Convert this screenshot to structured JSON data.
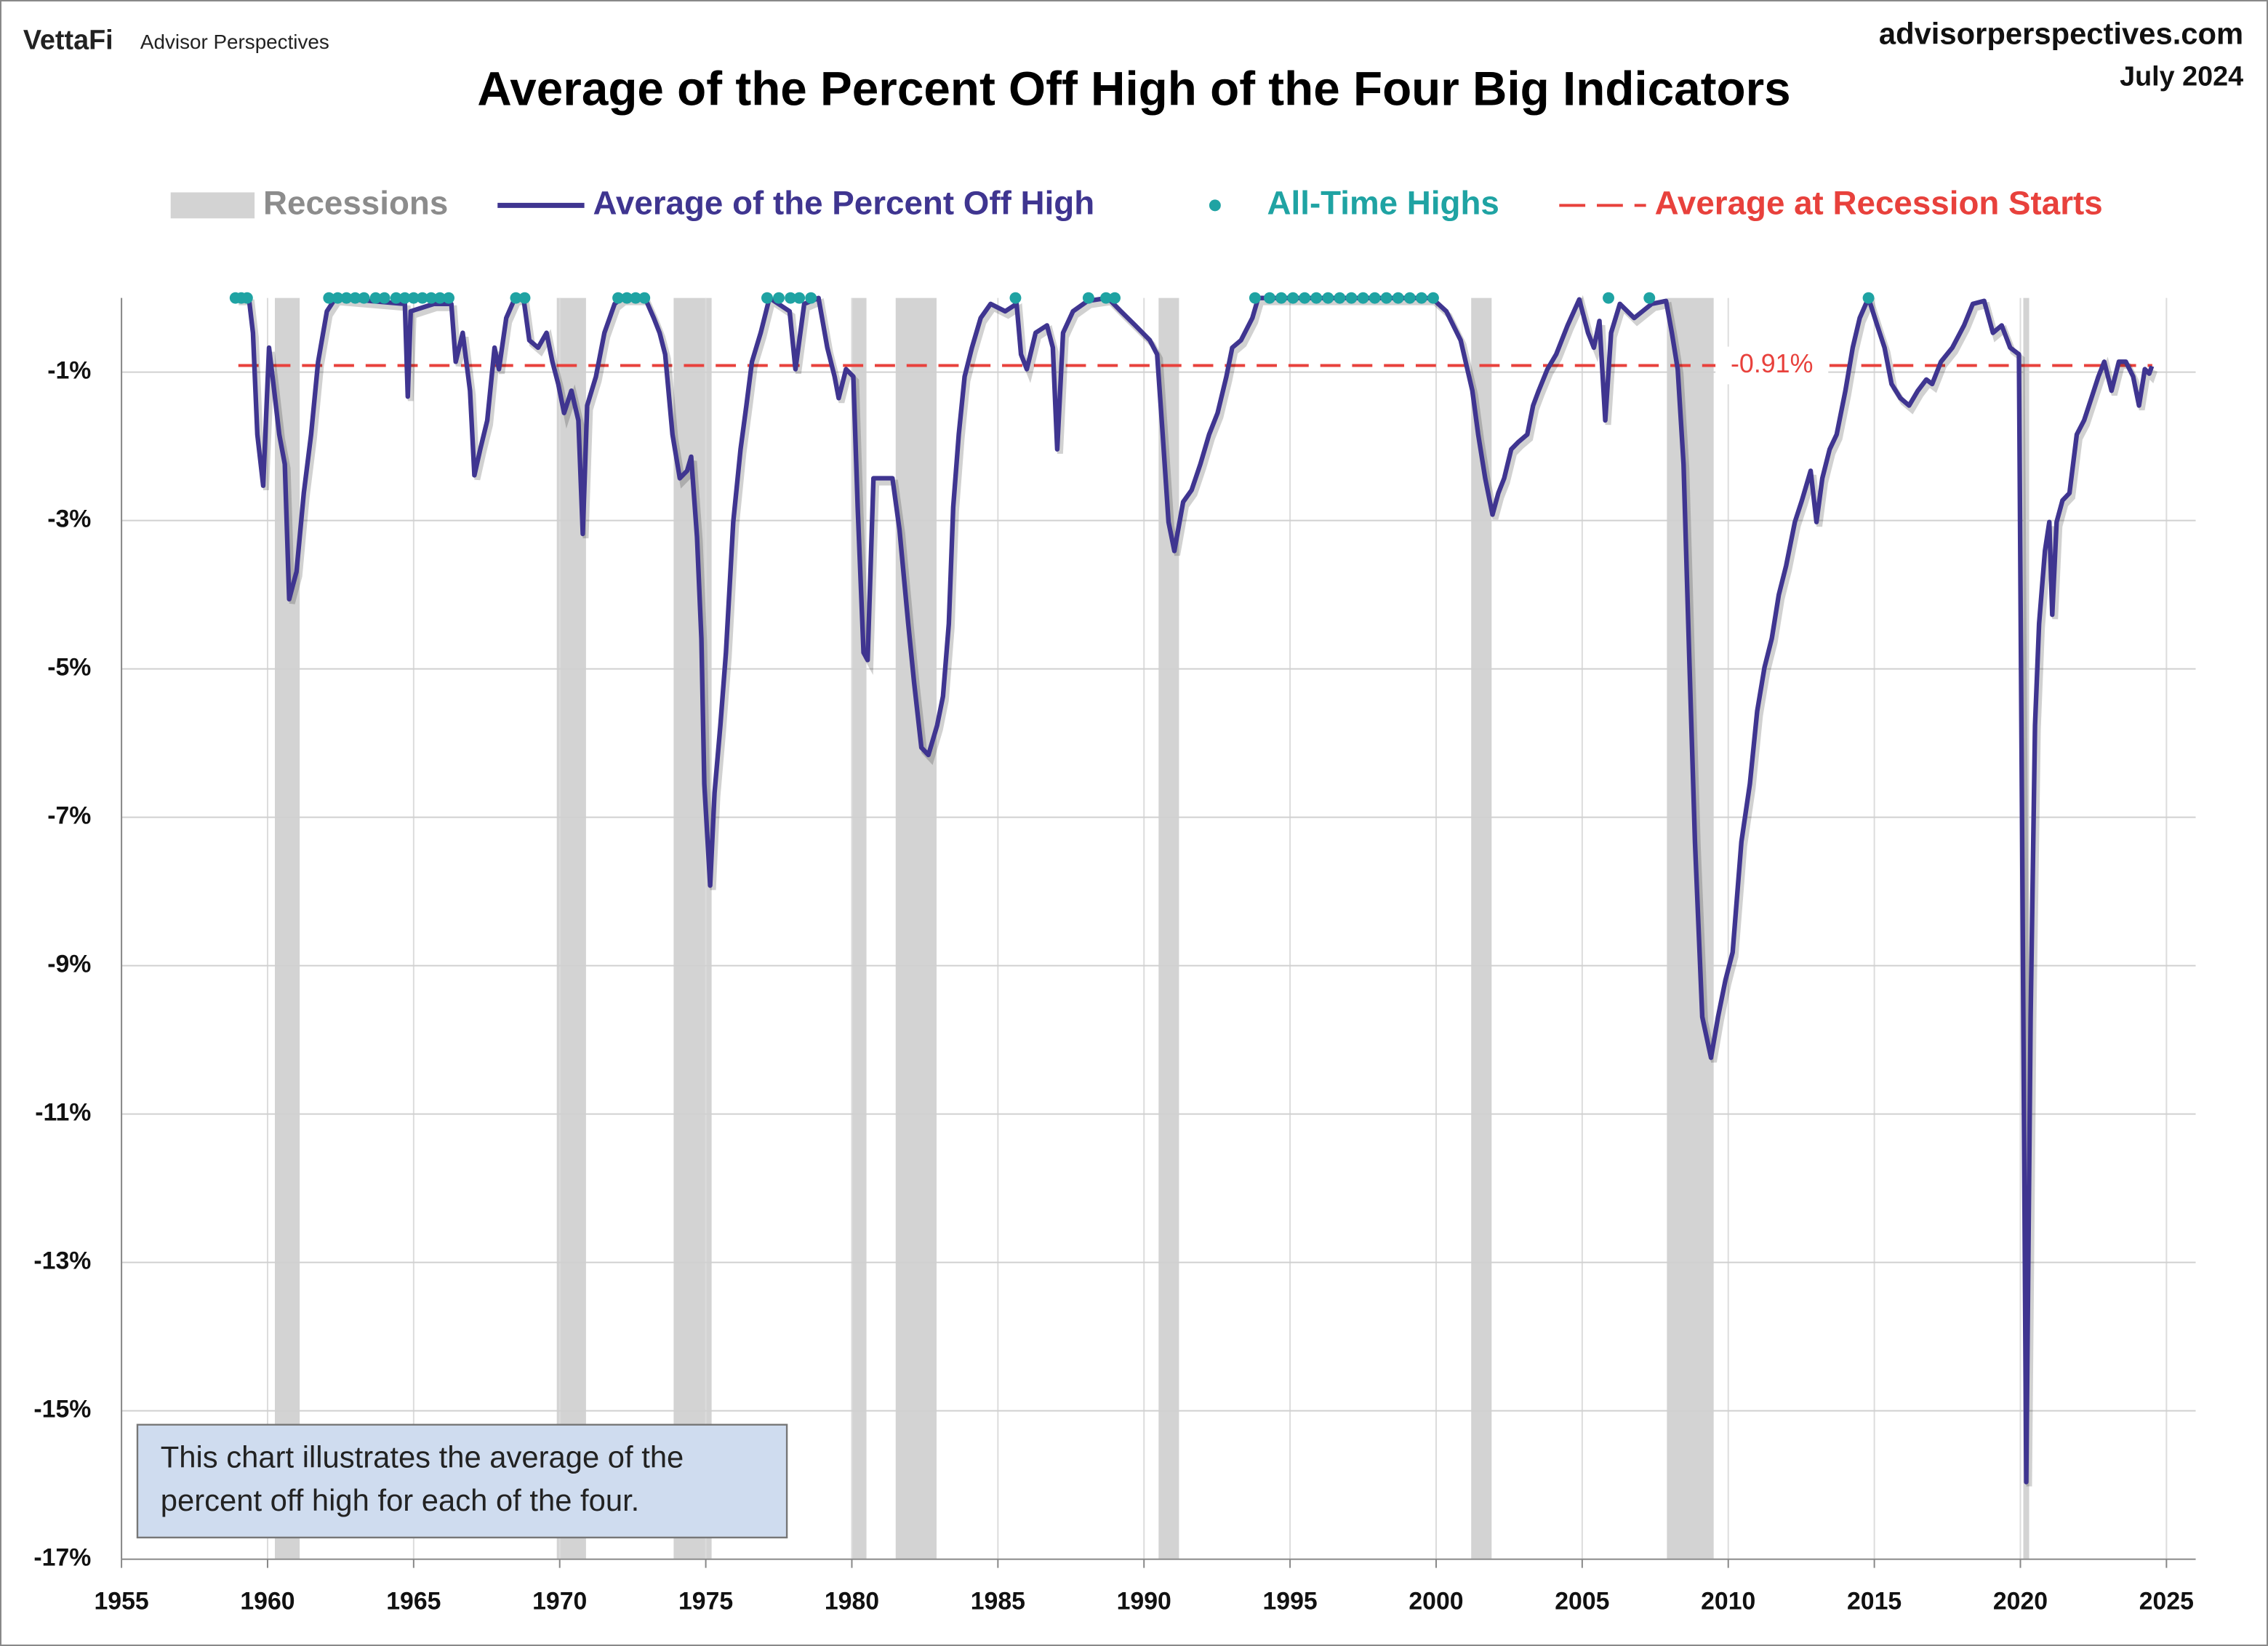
{
  "header": {
    "brand": "VettaFi",
    "publisher": "Advisor Perspectives",
    "site": "advisorperspectives.com",
    "date": "July 2024"
  },
  "chart_data": {
    "type": "line",
    "title": "Average of the Percent Off High of the Four Big Indicators",
    "xlim": [
      1955,
      2026
    ],
    "xticks": [
      1955,
      1960,
      1965,
      1970,
      1975,
      1980,
      1985,
      1990,
      1995,
      2000,
      2005,
      2010,
      2015,
      2020,
      2025
    ],
    "ylim": [
      -17,
      0
    ],
    "yticks": [
      {
        "value": -1,
        "label": "-1%"
      },
      {
        "value": -3,
        "label": "-3%"
      },
      {
        "value": -5,
        "label": "-5%"
      },
      {
        "value": -7,
        "label": "-7%"
      },
      {
        "value": -9,
        "label": "-9%"
      },
      {
        "value": -11,
        "label": "-11%"
      },
      {
        "value": -13,
        "label": "-13%"
      },
      {
        "value": -15,
        "label": "-15%"
      },
      {
        "value": -17,
        "label": "-17%"
      }
    ],
    "grid": true,
    "recessions": {
      "name": "Recessions",
      "color": "#d3d3d3",
      "periods": [
        [
          1960.25,
          1961.1
        ],
        [
          1969.9,
          1970.9
        ],
        [
          1973.9,
          1975.2
        ],
        [
          1980.0,
          1980.5
        ],
        [
          1981.5,
          1982.9
        ],
        [
          1990.5,
          1991.2
        ],
        [
          2001.2,
          2001.9
        ],
        [
          2007.9,
          2009.5
        ],
        [
          2020.1,
          2020.3
        ]
      ]
    },
    "series": [
      {
        "name": "Average of the Percent Off High",
        "type": "line",
        "color": "#3f3590",
        "x": [
          1958.91,
          1959.36,
          1959.5,
          1959.65,
          1959.85,
          1960.05,
          1960.2,
          1960.4,
          1960.59,
          1960.74,
          1960.99,
          1961.24,
          1961.49,
          1961.73,
          1962.03,
          1962.33,
          1964.7,
          1964.8,
          1964.9,
          1965.69,
          1966.29,
          1966.44,
          1966.68,
          1966.93,
          1967.08,
          1967.28,
          1967.52,
          1967.77,
          1967.92,
          1968.17,
          1968.47,
          1968.76,
          1968.96,
          1969.26,
          1969.55,
          1969.75,
          1969.95,
          1970.15,
          1970.4,
          1970.64,
          1970.79,
          1970.94,
          1971.24,
          1971.53,
          1971.88,
          1972.13,
          1972.92,
          1973.22,
          1973.42,
          1973.61,
          1973.86,
          1974.11,
          1974.36,
          1974.5,
          1974.7,
          1974.85,
          1974.95,
          1975.15,
          1975.3,
          1975.5,
          1975.69,
          1975.94,
          1976.19,
          1976.39,
          1976.58,
          1976.88,
          1977.18,
          1977.87,
          1978.07,
          1978.37,
          1978.86,
          1979.16,
          1979.41,
          1979.55,
          1979.8,
          1980.05,
          1980.2,
          1980.4,
          1980.54,
          1980.74,
          1981.04,
          1981.39,
          1981.63,
          1981.93,
          1982.13,
          1982.38,
          1982.62,
          1982.92,
          1983.12,
          1983.32,
          1983.47,
          1983.66,
          1983.86,
          1984.11,
          1984.41,
          1984.75,
          1985.25,
          1985.64,
          1985.79,
          1985.99,
          1986.29,
          1986.68,
          1986.88,
          1987.03,
          1987.23,
          1987.57,
          1988.07,
          1988.76,
          1989.21,
          1989.7,
          1990.2,
          1990.45,
          1990.64,
          1990.84,
          1991.04,
          1991.34,
          1991.63,
          1991.93,
          1992.23,
          1992.52,
          1992.82,
          1993.02,
          1993.32,
          1993.71,
          1993.91,
          1999.85,
          2000.35,
          2000.84,
          2001.24,
          2001.44,
          2001.68,
          2001.93,
          2002.13,
          2002.33,
          2002.57,
          2002.82,
          2003.12,
          2003.32,
          2003.51,
          2003.81,
          2004.11,
          2004.5,
          2004.9,
          2005.2,
          2005.4,
          2005.59,
          2005.79,
          2005.99,
          2006.29,
          2006.78,
          2007.38,
          2007.87,
          2008.07,
          2008.27,
          2008.47,
          2008.66,
          2008.86,
          2009.11,
          2009.41,
          2009.65,
          2009.9,
          2010.15,
          2010.45,
          2010.74,
          2010.99,
          2011.24,
          2011.49,
          2011.73,
          2011.98,
          2012.28,
          2012.52,
          2012.82,
          2013.02,
          2013.22,
          2013.47,
          2013.71,
          2014.01,
          2014.26,
          2014.5,
          2014.8,
          2015.1,
          2015.35,
          2015.59,
          2015.89,
          2016.19,
          2016.49,
          2016.78,
          2016.98,
          2017.28,
          2017.67,
          2018.07,
          2018.37,
          2018.76,
          2019.06,
          2019.36,
          2019.65,
          2019.95,
          2020.1,
          2020.2,
          2020.35,
          2020.5,
          2020.64,
          2020.84,
          2020.99,
          2021.09,
          2021.24,
          2021.44,
          2021.68,
          2021.93,
          2022.18,
          2022.43,
          2022.67,
          2022.87,
          2023.12,
          2023.37,
          2023.61,
          2023.86,
          2024.06,
          2024.26,
          2024.41,
          2024.5
        ],
        "values": [
          0,
          0,
          -0.47,
          -1.84,
          -2.53,
          -0.67,
          -1.16,
          -1.84,
          -2.24,
          -4.06,
          -3.69,
          -2.63,
          -1.84,
          -0.86,
          -0.18,
          0,
          -0.08,
          -1.33,
          -0.18,
          -0.08,
          -0.08,
          -0.86,
          -0.47,
          -1.25,
          -2.39,
          -2.04,
          -1.65,
          -0.67,
          -0.96,
          -0.27,
          0,
          0,
          -0.57,
          -0.67,
          -0.47,
          -0.86,
          -1.16,
          -1.55,
          -1.25,
          -1.65,
          -3.18,
          -1.45,
          -1.06,
          -0.47,
          -0.08,
          0,
          0,
          -0.27,
          -0.47,
          -0.76,
          -1.84,
          -2.43,
          -2.33,
          -2.14,
          -3.22,
          -4.59,
          -6.55,
          -7.92,
          -6.67,
          -5.76,
          -4.78,
          -3.02,
          -2.04,
          -1.45,
          -0.86,
          -0.47,
          0,
          -0.18,
          -0.96,
          -0.08,
          0,
          -0.67,
          -1.06,
          -1.35,
          -0.96,
          -1.06,
          -2.82,
          -4.78,
          -4.88,
          -2.43,
          -2.43,
          -2.43,
          -3.12,
          -4.39,
          -5.18,
          -6.06,
          -6.16,
          -5.76,
          -5.37,
          -4.39,
          -2.82,
          -1.84,
          -1.06,
          -0.67,
          -0.27,
          -0.08,
          -0.18,
          -0.08,
          -0.76,
          -0.96,
          -0.47,
          -0.37,
          -0.67,
          -2.04,
          -0.47,
          -0.18,
          -0.04,
          0,
          -0.18,
          -0.37,
          -0.57,
          -0.76,
          -1.84,
          -3.02,
          -3.41,
          -2.75,
          -2.59,
          -2.24,
          -1.84,
          -1.55,
          -1.06,
          -0.67,
          -0.57,
          -0.27,
          0,
          0,
          -0.18,
          -0.57,
          -1.25,
          -1.84,
          -2.43,
          -2.92,
          -2.63,
          -2.43,
          -2.04,
          -1.94,
          -1.84,
          -1.45,
          -1.25,
          -0.96,
          -0.76,
          -0.37,
          -0.02,
          -0.47,
          -0.67,
          -0.31,
          -1.65,
          -0.47,
          -0.08,
          -0.27,
          -0.08,
          -0.04,
          -0.47,
          -0.96,
          -2.24,
          -4.78,
          -7.33,
          -9.69,
          -10.24,
          -9.69,
          -9.2,
          -8.82,
          -7.33,
          -6.55,
          -5.57,
          -4.98,
          -4.59,
          -4.0,
          -3.61,
          -3.02,
          -2.73,
          -2.33,
          -3.02,
          -2.43,
          -2.04,
          -1.84,
          -1.25,
          -0.67,
          -0.27,
          0,
          -0.37,
          -0.67,
          -1.16,
          -1.35,
          -1.45,
          -1.25,
          -1.1,
          -1.16,
          -0.86,
          -0.67,
          -0.37,
          -0.08,
          -0.04,
          -0.47,
          -0.37,
          -0.67,
          -0.76,
          -9.69,
          -15.96,
          -9.69,
          -5.76,
          -4.39,
          -3.41,
          -3.02,
          -4.27,
          -3.02,
          -2.73,
          -2.63,
          -1.84,
          -1.65,
          -1.35,
          -1.06,
          -0.86,
          -1.25,
          -0.86,
          -0.86,
          -1.06,
          -1.45,
          -0.96,
          -1.02,
          -0.92
        ]
      },
      {
        "name": "All-Time Highs",
        "type": "scatter",
        "color": "#1fa3a3",
        "x": [
          1958.9,
          1959.1,
          1959.3,
          1962.1,
          1962.4,
          1962.7,
          1963.0,
          1963.3,
          1963.7,
          1964.0,
          1964.4,
          1964.7,
          1965.0,
          1965.3,
          1965.6,
          1965.9,
          1966.2,
          1968.5,
          1968.8,
          1972.0,
          1972.3,
          1972.6,
          1972.9,
          1977.1,
          1977.5,
          1977.9,
          1978.2,
          1978.6,
          1985.6,
          1988.1,
          1988.7,
          1989.0,
          1993.8,
          1994.3,
          1994.7,
          1995.1,
          1995.5,
          1995.9,
          1996.3,
          1996.7,
          1997.1,
          1997.5,
          1997.9,
          1998.3,
          1998.7,
          1999.1,
          1999.5,
          1999.9,
          2005.9,
          2007.3,
          2014.8
        ],
        "values": [
          0,
          0,
          0,
          0,
          0,
          0,
          0,
          0,
          0,
          0,
          0,
          0,
          0,
          0,
          0,
          0,
          0,
          0,
          0,
          0,
          0,
          0,
          0,
          0,
          0,
          0,
          0,
          0,
          0,
          0,
          0,
          0,
          0,
          0,
          0,
          0,
          0,
          0,
          0,
          0,
          0,
          0,
          0,
          0,
          0,
          0,
          0,
          0,
          0,
          0,
          0
        ]
      }
    ],
    "reference_line": {
      "name": "Average at Recession Starts",
      "color": "#e8413c",
      "value": -0.91,
      "value_label": "-0.91%"
    },
    "annotation": [
      "This chart illustrates the average of the",
      "percent off high for each of the four."
    ]
  }
}
